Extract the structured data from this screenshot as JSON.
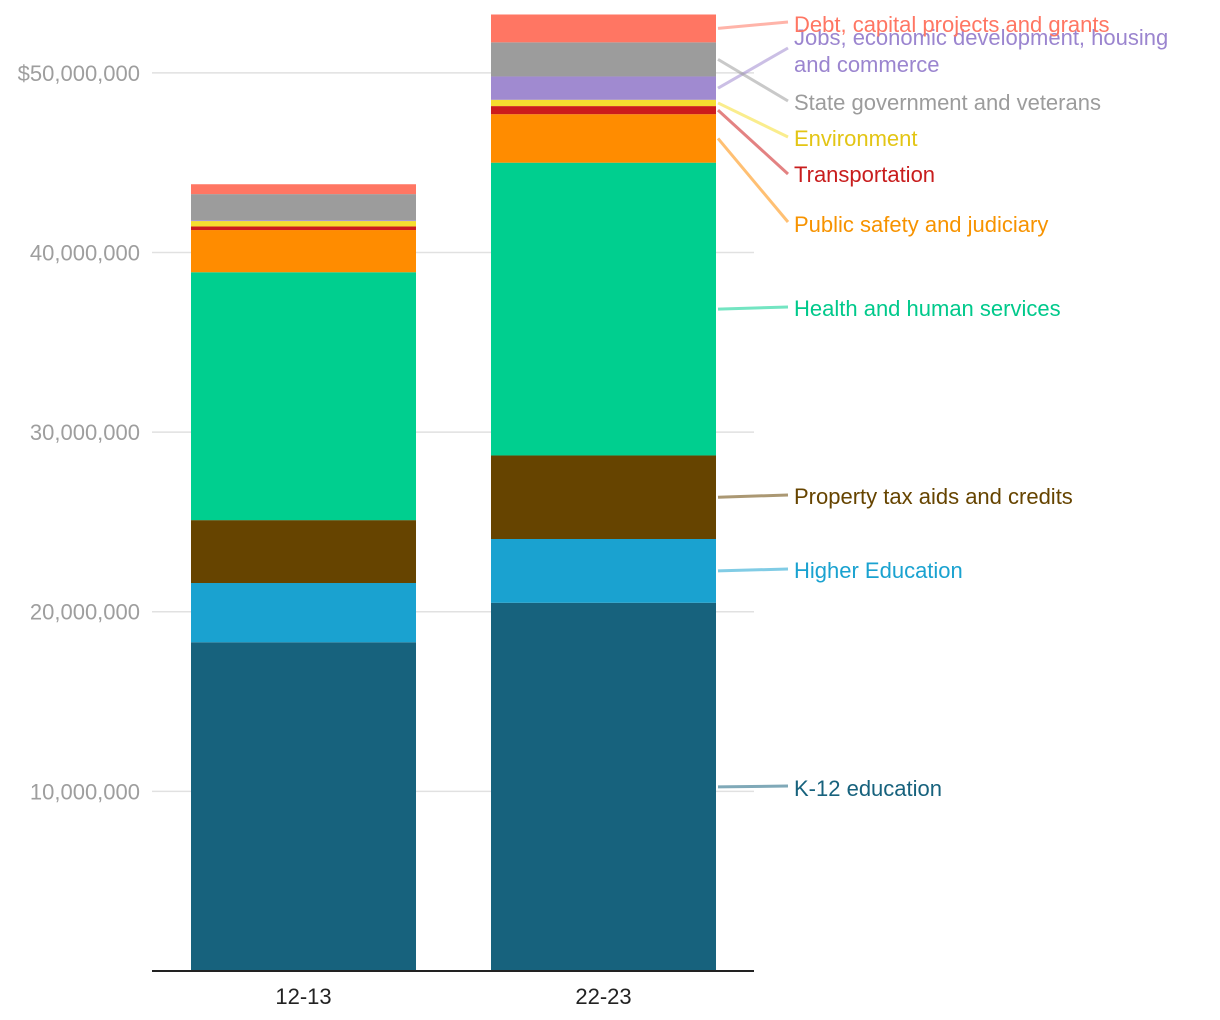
{
  "chart_data": {
    "type": "bar",
    "stacked": true,
    "categories": [
      "12-13",
      "22-23"
    ],
    "y_ticks": [
      {
        "value": 10000000,
        "label": "10,000,000"
      },
      {
        "value": 20000000,
        "label": "20,000,000"
      },
      {
        "value": 30000000,
        "label": "30,000,000"
      },
      {
        "value": 40000000,
        "label": "40,000,000"
      },
      {
        "value": 50000000,
        "label": "$50,000,000"
      }
    ],
    "ylim": [
      0,
      53500000
    ],
    "grid": true,
    "series": [
      {
        "name": "K-12 education",
        "color": "#17627d",
        "label_color": "#17627d",
        "values": [
          18300000,
          20500000
        ]
      },
      {
        "name": "Higher Education",
        "color": "#1aa2d0",
        "label_color": "#1aa2d0",
        "values": [
          3300000,
          3550000
        ]
      },
      {
        "name": "Property tax aids and credits",
        "color": "#664400",
        "label_color": "#664400",
        "values": [
          3500000,
          4650000
        ]
      },
      {
        "name": "Health and human services",
        "color": "#00cf8f",
        "label_color": "#00c98b",
        "values": [
          13800000,
          16300000
        ]
      },
      {
        "name": "Public safety and judiciary",
        "color": "#ff8c00",
        "label_color": "#f79300",
        "values": [
          2350000,
          2700000
        ]
      },
      {
        "name": "Transportation",
        "color": "#cc1c1c",
        "label_color": "#c81d1d",
        "values": [
          200000,
          450000
        ]
      },
      {
        "name": "Environment",
        "color": "#f5de2f",
        "label_color": "#e3c515",
        "values": [
          300000,
          350000
        ]
      },
      {
        "name": "Jobs, economic development, housing and commerce",
        "color": "#a08ad0",
        "label_color": "#9b85cf",
        "values": [
          50000,
          1300000
        ]
      },
      {
        "name": "State government and veterans",
        "color": "#9c9c9c",
        "label_color": "#9c9c9c",
        "values": [
          1450000,
          1900000
        ]
      },
      {
        "name": "Debt, capital projects and grants",
        "color": "#ff7663",
        "label_color": "#ff7663",
        "values": [
          550000,
          1550000
        ]
      }
    ],
    "xlabel": "",
    "ylabel": ""
  }
}
